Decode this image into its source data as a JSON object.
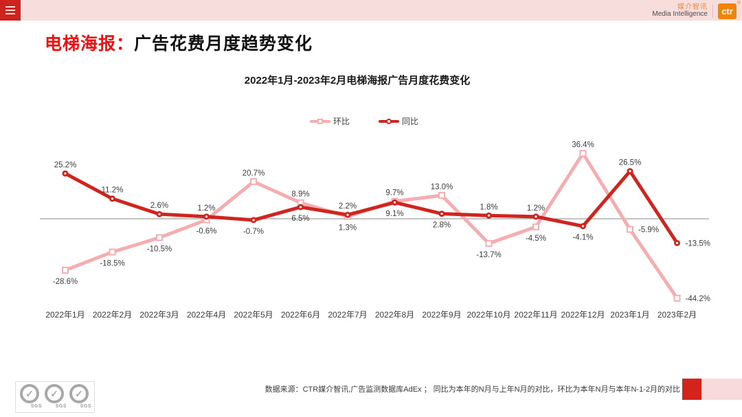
{
  "header": {
    "brand_cn": "媒介智讯",
    "brand_en": "Media Intelligence",
    "logo_text": "ctr",
    "reg_mark": "®"
  },
  "title": {
    "highlight": "电梯海报：",
    "rest": "广告花费月度趋势变化"
  },
  "chart_data": {
    "type": "line",
    "title": "2022年1月-2023年2月电梯海报广告月度花费变化",
    "categories": [
      "2022年1月",
      "2022年2月",
      "2022年3月",
      "2022年4月",
      "2022年5月",
      "2022年6月",
      "2022年7月",
      "2022年8月",
      "2022年9月",
      "2022年10月",
      "2022年11月",
      "2022年12月",
      "2023年1月",
      "2023年2月"
    ],
    "series": [
      {
        "name": "环比",
        "color": "#f6adb0",
        "marker": "square",
        "values": [
          -28.6,
          -18.5,
          -10.5,
          -0.6,
          20.7,
          8.9,
          1.3,
          9.7,
          13.0,
          -13.7,
          -4.5,
          36.4,
          -5.9,
          -44.2
        ],
        "label_positions": [
          "below",
          "below",
          "below",
          "below",
          "above",
          "above",
          "below",
          "above",
          "above",
          "below",
          "below",
          "above",
          "right",
          "right"
        ]
      },
      {
        "name": "同比",
        "color": "#d0241e",
        "marker": "circle",
        "values": [
          25.2,
          11.2,
          2.6,
          1.2,
          -0.7,
          6.5,
          2.2,
          9.1,
          2.8,
          1.8,
          1.2,
          -4.1,
          26.5,
          -13.5
        ],
        "label_positions": [
          "above",
          "above",
          "above",
          "above",
          "below",
          "below",
          "above",
          "below",
          "below",
          "above",
          "above",
          "below",
          "above",
          "right"
        ]
      }
    ],
    "unit": "%",
    "ylim": [
      -50,
      45
    ],
    "zero_line": true,
    "grid": false,
    "legend_position": "top-center"
  },
  "footer": {
    "source_note": "数据来源：CTR媒介智讯,广告监测数据库AdEx ； 同比为本年的N月与上年N月的对比，环比为本年N月与本年N-1-2月的对比",
    "sgs_label": "SGS",
    "sgs_check": "✓"
  },
  "colors": {
    "topbar_bg": "#f8dddd",
    "menu_box_red": "#cf241e",
    "title_highlight_red": "#ee1111",
    "logo_orange": "#f0830a",
    "brand_cn_orange": "#ef8b3a",
    "footer_block_red": "#d3241c",
    "footer_block_pink": "#f8d9dc",
    "axis_line": "#8a8a8a",
    "label_text": "#3d3d3d"
  }
}
